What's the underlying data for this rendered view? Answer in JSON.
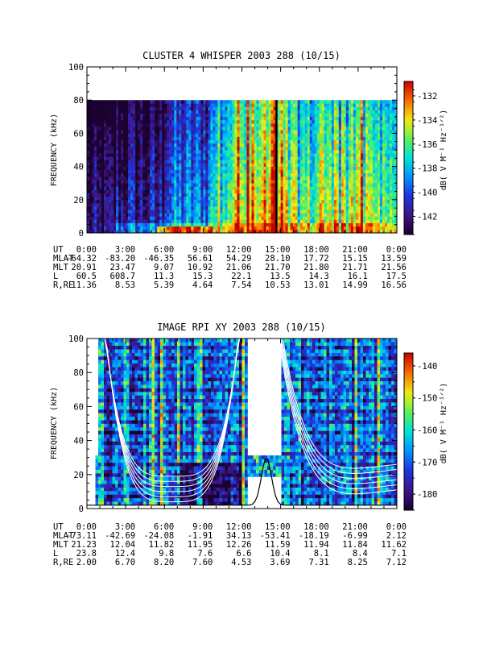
{
  "chart_data": [
    {
      "type": "heatmap",
      "title": "CLUSTER 4 WHISPER 2003 288 (10/15)",
      "ylabel": "FREQUENCY (kHz)",
      "ylim": [
        0,
        100
      ],
      "yticks": [
        "0",
        "20",
        "40",
        "60",
        "80",
        "100"
      ],
      "xlim_hours": [
        0,
        24
      ],
      "xticks": [
        "0:00",
        "3:00",
        "6:00",
        "9:00",
        "12:00",
        "15:00",
        "18:00",
        "21:00",
        "0:00"
      ],
      "colorbar": {
        "label": "dB( V M⁻¹ Hz⁻¹ᐟ²)",
        "ticks": [
          "-132",
          "-134",
          "-136",
          "-138",
          "-140",
          "-142"
        ],
        "tick_values": [
          -132,
          -134,
          -136,
          -138,
          -140,
          -142
        ],
        "range": [
          -143.5,
          -130.8
        ]
      },
      "data_top_khz": 80,
      "data_gap_hours": [
        14.6,
        14.75
      ],
      "ephemeris": {
        "rows": [
          {
            "label": "UT",
            "values": [
              "0:00",
              "3:00",
              "6:00",
              "9:00",
              "12:00",
              "15:00",
              "18:00",
              "21:00",
              "0:00"
            ]
          },
          {
            "label": "MLAT",
            "values": [
              "-64.32",
              "-83.20",
              "-46.35",
              "56.61",
              "54.29",
              "28.10",
              "17.72",
              "15.15",
              "13.59"
            ]
          },
          {
            "label": "MLT",
            "values": [
              "20.91",
              "23.47",
              "9.07",
              "10.92",
              "21.06",
              "21.70",
              "21.80",
              "21.71",
              "21.56"
            ]
          },
          {
            "label": "L",
            "values": [
              "60.5",
              "608.7",
              "11.3",
              "15.3",
              "22.1",
              "13.5",
              "14.3",
              "16.1",
              "17.5"
            ]
          },
          {
            "label": "R,RE",
            "values": [
              "11.36",
              "8.53",
              "5.39",
              "4.64",
              "7.54",
              "10.53",
              "13.01",
              "14.99",
              "16.56"
            ]
          }
        ]
      }
    },
    {
      "type": "heatmap",
      "title": "IMAGE RPI XY 2003 288 (10/15)",
      "ylabel": "FREQUENCY (kHz)",
      "ylim": [
        0,
        100
      ],
      "yticks": [
        "0",
        "20",
        "40",
        "60",
        "80",
        "100"
      ],
      "xlim_hours": [
        0,
        24
      ],
      "xticks": [
        "0:00",
        "3:00",
        "6:00",
        "9:00",
        "12:00",
        "15:00",
        "18:00",
        "21:00",
        "0:00"
      ],
      "colorbar": {
        "label": "dB( V M⁻¹ Hz⁻¹ᐟ²)",
        "ticks": [
          "-140",
          "-150",
          "-160",
          "-170",
          "-180"
        ],
        "tick_values": [
          -140,
          -150,
          -160,
          -170,
          -180
        ],
        "range": [
          -185,
          -136
        ]
      },
      "data_gap_hours": [
        12.45,
        15.0
      ],
      "overlay_curves": "white plasma frequency contours; black electron gyrofrequency curve",
      "ephemeris": {
        "rows": [
          {
            "label": "UT",
            "values": [
              "0:00",
              "3:00",
              "6:00",
              "9:00",
              "12:00",
              "15:00",
              "18:00",
              "21:00",
              "0:00"
            ]
          },
          {
            "label": "MLAT",
            "values": [
              "-73.11",
              "-42.69",
              "-24.08",
              "-1.91",
              "34.13",
              "-53.41",
              "-18.19",
              "-6.99",
              "2.12"
            ]
          },
          {
            "label": "MLT",
            "values": [
              "21.23",
              "12.04",
              "11.82",
              "11.95",
              "12.26",
              "11.59",
              "11.94",
              "11.84",
              "11.62"
            ]
          },
          {
            "label": "L",
            "values": [
              "23.8",
              "12.4",
              "9.8",
              "7.6",
              "6.6",
              "10.4",
              "8.1",
              "8.4",
              "7.1"
            ]
          },
          {
            "label": "R,RE",
            "values": [
              "2.00",
              "6.70",
              "8.20",
              "7.60",
              "4.53",
              "3.69",
              "7.31",
              "8.25",
              "7.12"
            ]
          }
        ]
      }
    }
  ]
}
